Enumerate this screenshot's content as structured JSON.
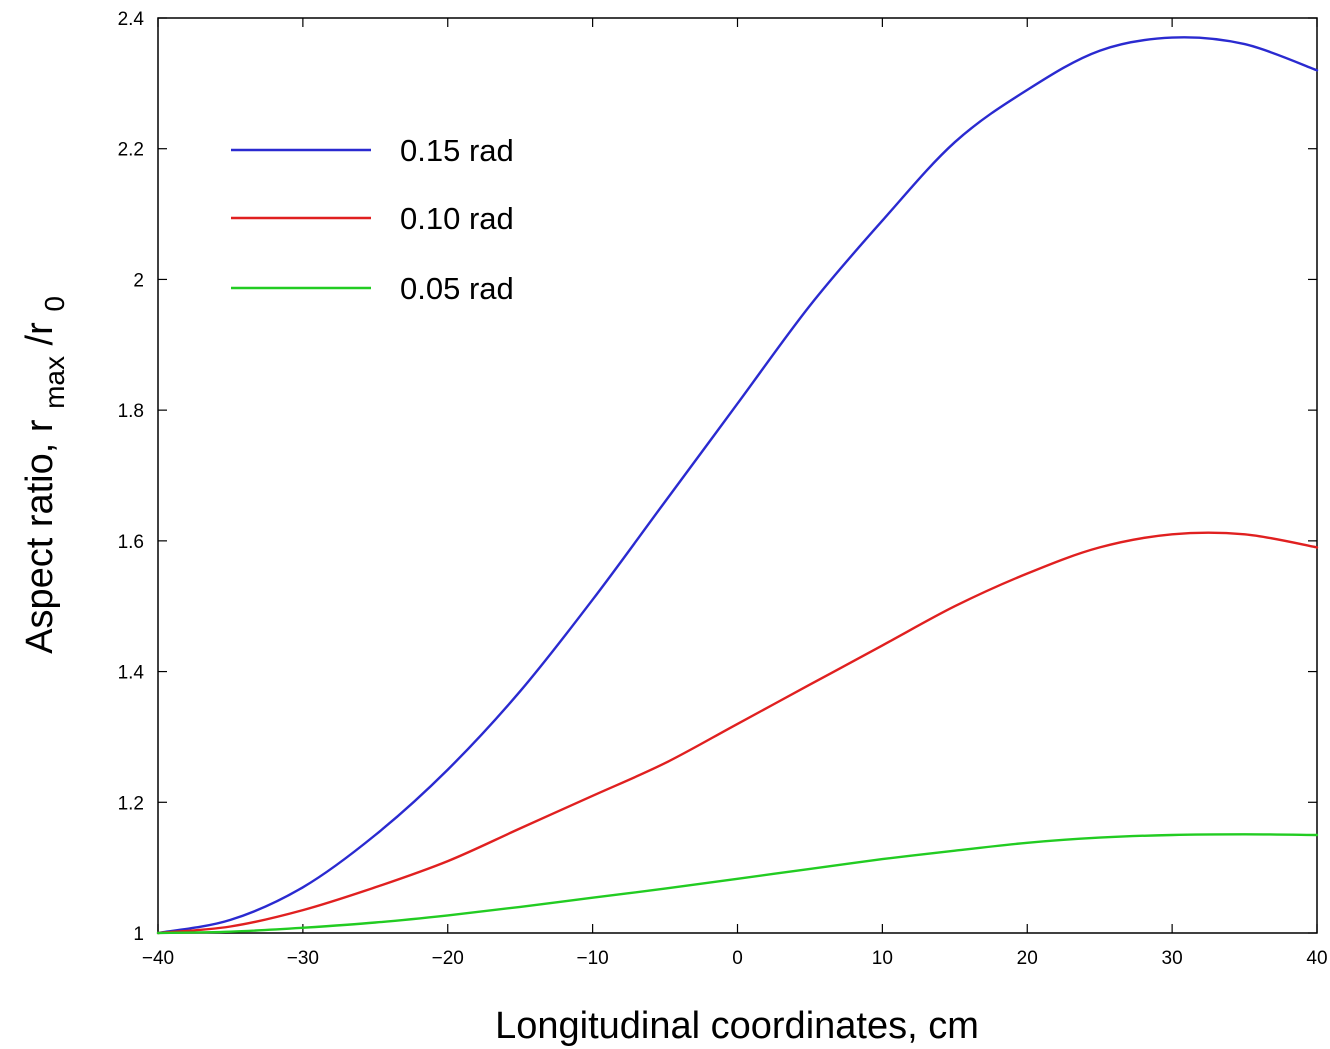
{
  "chart_data": {
    "type": "line",
    "title": "",
    "xlabel": "Longitudinal coordinates,  cm",
    "ylabel": {
      "prefix": "Aspect ratio,  r",
      "sub1": "max",
      "mid": "/r",
      "sub2": "0"
    },
    "xlim": [
      -40,
      40
    ],
    "ylim": [
      1,
      2.4
    ],
    "xticks": [
      -40,
      -30,
      -20,
      -10,
      0,
      10,
      20,
      30,
      40
    ],
    "xtick_labels": [
      "−40",
      "−30",
      "−20",
      "−10",
      "0",
      "10",
      "20",
      "30",
      "40"
    ],
    "yticks": [
      1,
      1.2,
      1.4,
      1.6,
      1.8,
      2,
      2.2,
      2.4
    ],
    "ytick_labels": [
      "1",
      "1.2",
      "1.4",
      "1.6",
      "1.8",
      "2",
      "2.2",
      "2.4"
    ],
    "grid": false,
    "legend_position": "top-left",
    "x": [
      -40,
      -35,
      -30,
      -25,
      -20,
      -15,
      -10,
      -5,
      0,
      5,
      10,
      15,
      20,
      25,
      30,
      35,
      40
    ],
    "series": [
      {
        "name": "0.15 rad",
        "color": "#2a2ad0",
        "values": [
          1.0,
          1.02,
          1.07,
          1.15,
          1.25,
          1.37,
          1.51,
          1.66,
          1.81,
          1.96,
          2.09,
          2.21,
          2.29,
          2.35,
          2.37,
          2.36,
          2.32
        ]
      },
      {
        "name": "0.10 rad",
        "color": "#e02020",
        "values": [
          1.0,
          1.01,
          1.035,
          1.07,
          1.11,
          1.16,
          1.21,
          1.26,
          1.32,
          1.38,
          1.44,
          1.5,
          1.55,
          1.59,
          1.61,
          1.61,
          1.59
        ]
      },
      {
        "name": "0.05 rad",
        "color": "#22cc22",
        "values": [
          1.0,
          1.002,
          1.008,
          1.016,
          1.027,
          1.04,
          1.054,
          1.068,
          1.083,
          1.098,
          1.113,
          1.126,
          1.138,
          1.146,
          1.15,
          1.151,
          1.15
        ]
      }
    ]
  }
}
